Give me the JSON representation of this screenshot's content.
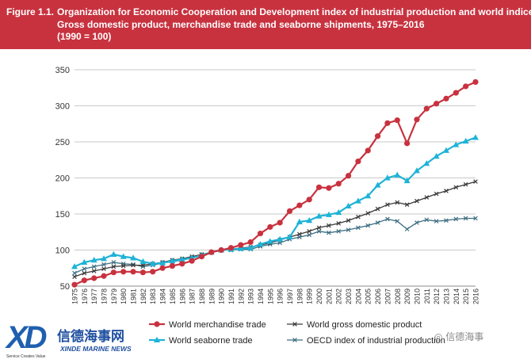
{
  "figure": {
    "label": "Figure 1.1.",
    "title_lines": [
      "Organization for Economic Cooperation and Development index of industrial production and world indices:",
      "Gross domestic product, merchandise trade and seaborne shipments, 1975–2016",
      "(1990 = 100)"
    ]
  },
  "colors": {
    "banner": "#c8323f",
    "merchandise": "#c8323f",
    "seaborne": "#1fb3d6",
    "gdp": "#3a3a3a",
    "oecd": "#3e6f82"
  },
  "chart_data": {
    "type": "line",
    "x": [
      1975,
      1976,
      1977,
      1978,
      1979,
      1980,
      1981,
      1982,
      1983,
      1984,
      1985,
      1986,
      1987,
      1988,
      1989,
      1990,
      1991,
      1992,
      1993,
      1994,
      1995,
      1996,
      1997,
      1998,
      1999,
      2000,
      2001,
      2002,
      2003,
      2004,
      2005,
      2006,
      2007,
      2008,
      2009,
      2010,
      2011,
      2012,
      2013,
      2014,
      2015,
      2016
    ],
    "ylim": [
      50,
      350
    ],
    "yticks": [
      50,
      100,
      150,
      200,
      250,
      300,
      350
    ],
    "grid": "horizontal",
    "legend_position": "bottom",
    "series": [
      {
        "name": "World merchandise trade",
        "marker": "circle",
        "values": [
          52,
          58,
          61,
          64,
          69,
          70,
          70,
          69,
          70,
          75,
          78,
          81,
          85,
          91,
          97,
          100,
          103,
          107,
          111,
          123,
          132,
          138,
          154,
          162,
          170,
          187,
          186,
          192,
          203,
          223,
          238,
          258,
          276,
          280,
          248,
          281,
          296,
          303,
          310,
          318,
          327,
          333
        ]
      },
      {
        "name": "World seaborne trade",
        "marker": "triangle",
        "values": [
          77,
          83,
          86,
          88,
          94,
          91,
          89,
          84,
          81,
          82,
          85,
          87,
          89,
          93,
          97,
          100,
          101,
          102,
          103,
          108,
          112,
          115,
          118,
          139,
          141,
          147,
          149,
          152,
          161,
          168,
          175,
          190,
          200,
          204,
          196,
          210,
          220,
          230,
          238,
          246,
          251,
          256
        ]
      },
      {
        "name": "World gross domestic product",
        "marker": "x",
        "values": [
          63,
          68,
          71,
          74,
          77,
          78,
          79,
          79,
          81,
          83,
          86,
          88,
          91,
          94,
          97,
          100,
          101,
          103,
          104,
          107,
          110,
          114,
          118,
          122,
          126,
          131,
          134,
          137,
          141,
          146,
          151,
          157,
          163,
          166,
          163,
          168,
          173,
          178,
          182,
          187,
          191,
          195
        ]
      },
      {
        "name": "OECD index of industrial production",
        "marker": "x",
        "values": [
          68,
          74,
          77,
          80,
          83,
          81,
          80,
          77,
          79,
          82,
          84,
          86,
          89,
          93,
          97,
          100,
          100,
          101,
          101,
          105,
          108,
          110,
          115,
          118,
          121,
          126,
          124,
          126,
          128,
          131,
          134,
          138,
          143,
          140,
          129,
          138,
          142,
          140,
          141,
          143,
          144,
          144
        ]
      }
    ]
  },
  "logo": {
    "mark": "XD",
    "name_cn": "信德海事网",
    "name_en": "XINDE MARINE NEWS",
    "slogan": "Service Creates Value"
  },
  "watermark": "信德海事"
}
